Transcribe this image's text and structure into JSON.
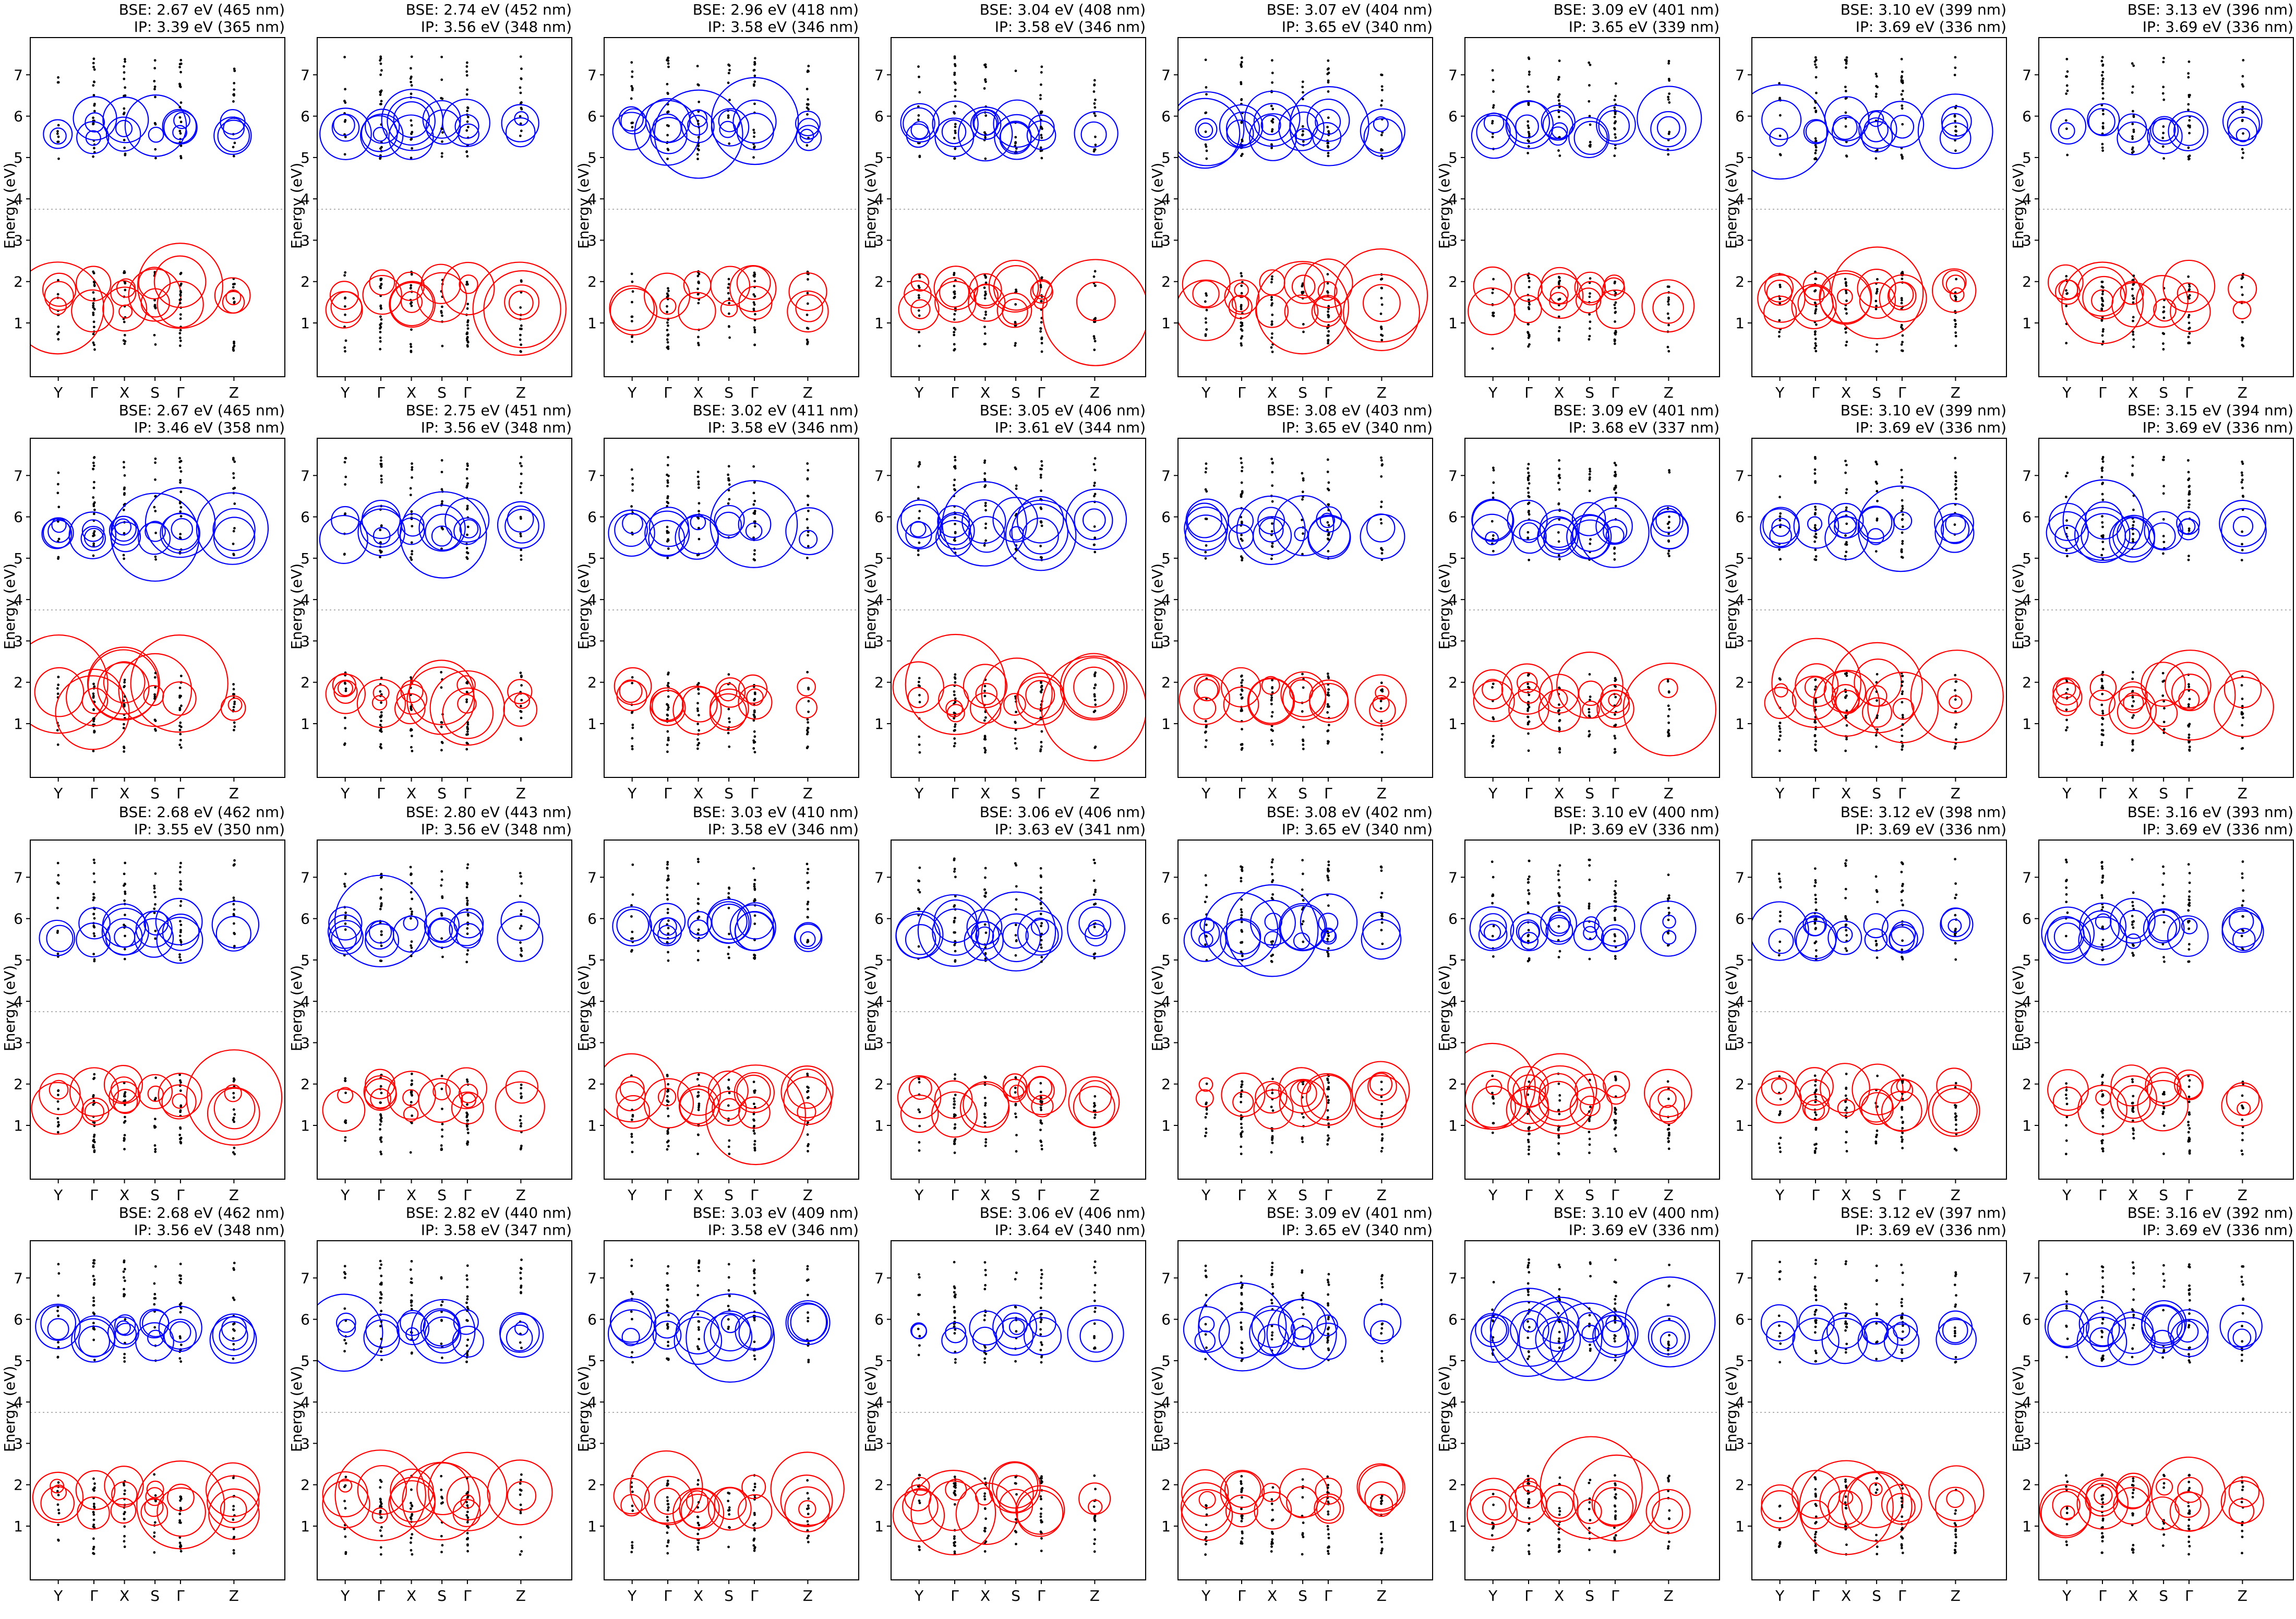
{
  "chart_data": {
    "type": "scatter",
    "ylabel": "Energy (eV)",
    "yticks": [
      1,
      2,
      3,
      4,
      5,
      6,
      7
    ],
    "xticks": [
      "Y",
      "Γ",
      "X",
      "S",
      "Γ",
      "Z"
    ],
    "ylim": [
      -0.3,
      7.9
    ],
    "grid": false,
    "reference_line_y": 3.75,
    "colors": {
      "valence": "#ff0000",
      "conduction": "#0000ff",
      "levels": "#000000",
      "ref_line": "#b0b0b0"
    },
    "panels": [
      {
        "bse": "BSE: 2.67 eV (465 nm)",
        "ip": "IP: 3.39 eV (365 nm)"
      },
      {
        "bse": "BSE: 2.74 eV (452 nm)",
        "ip": "IP: 3.56 eV (348 nm)"
      },
      {
        "bse": "BSE: 2.96 eV (418 nm)",
        "ip": "IP: 3.58 eV (346 nm)"
      },
      {
        "bse": "BSE: 3.04 eV (408 nm)",
        "ip": "IP: 3.58 eV (346 nm)"
      },
      {
        "bse": "BSE: 3.07 eV (404 nm)",
        "ip": "IP: 3.65 eV (340 nm)"
      },
      {
        "bse": "BSE: 3.09 eV (401 nm)",
        "ip": "IP: 3.65 eV (339 nm)"
      },
      {
        "bse": "BSE: 3.10 eV (399 nm)",
        "ip": "IP: 3.69 eV (336 nm)"
      },
      {
        "bse": "BSE: 3.13 eV (396 nm)",
        "ip": "IP: 3.69 eV (336 nm)"
      },
      {
        "bse": "BSE: 2.67 eV (465 nm)",
        "ip": "IP: 3.46 eV (358 nm)"
      },
      {
        "bse": "BSE: 2.75 eV (451 nm)",
        "ip": "IP: 3.56 eV (348 nm)"
      },
      {
        "bse": "BSE: 3.02 eV (411 nm)",
        "ip": "IP: 3.58 eV (346 nm)"
      },
      {
        "bse": "BSE: 3.05 eV (406 nm)",
        "ip": "IP: 3.61 eV (344 nm)"
      },
      {
        "bse": "BSE: 3.08 eV (403 nm)",
        "ip": "IP: 3.65 eV (340 nm)"
      },
      {
        "bse": "BSE: 3.09 eV (401 nm)",
        "ip": "IP: 3.68 eV (337 nm)"
      },
      {
        "bse": "BSE: 3.10 eV (399 nm)",
        "ip": "IP: 3.69 eV (336 nm)"
      },
      {
        "bse": "BSE: 3.15 eV (394 nm)",
        "ip": "IP: 3.69 eV (336 nm)"
      },
      {
        "bse": "BSE: 2.68 eV (462 nm)",
        "ip": "IP: 3.55 eV (350 nm)"
      },
      {
        "bse": "BSE: 2.80 eV (443 nm)",
        "ip": "IP: 3.56 eV (348 nm)"
      },
      {
        "bse": "BSE: 3.03 eV (410 nm)",
        "ip": "IP: 3.58 eV (346 nm)"
      },
      {
        "bse": "BSE: 3.06 eV (406 nm)",
        "ip": "IP: 3.63 eV (341 nm)"
      },
      {
        "bse": "BSE: 3.08 eV (402 nm)",
        "ip": "IP: 3.65 eV (340 nm)"
      },
      {
        "bse": "BSE: 3.10 eV (400 nm)",
        "ip": "IP: 3.69 eV (336 nm)"
      },
      {
        "bse": "BSE: 3.12 eV (398 nm)",
        "ip": "IP: 3.69 eV (336 nm)"
      },
      {
        "bse": "BSE: 3.16 eV (393 nm)",
        "ip": "IP: 3.69 eV (336 nm)"
      },
      {
        "bse": "BSE: 2.68 eV (462 nm)",
        "ip": "IP: 3.56 eV (348 nm)"
      },
      {
        "bse": "BSE: 2.82 eV (440 nm)",
        "ip": "IP: 3.58 eV (347 nm)"
      },
      {
        "bse": "BSE: 3.03 eV (409 nm)",
        "ip": "IP: 3.58 eV (346 nm)"
      },
      {
        "bse": "BSE: 3.06 eV (406 nm)",
        "ip": "IP: 3.64 eV (340 nm)"
      },
      {
        "bse": "BSE: 3.09 eV (401 nm)",
        "ip": "IP: 3.65 eV (340 nm)"
      },
      {
        "bse": "BSE: 3.10 eV (400 nm)",
        "ip": "IP: 3.69 eV (336 nm)"
      },
      {
        "bse": "BSE: 3.12 eV (397 nm)",
        "ip": "IP: 3.69 eV (336 nm)"
      },
      {
        "bse": "BSE: 3.16 eV (392 nm)",
        "ip": "IP: 3.69 eV (336 nm)"
      }
    ]
  }
}
